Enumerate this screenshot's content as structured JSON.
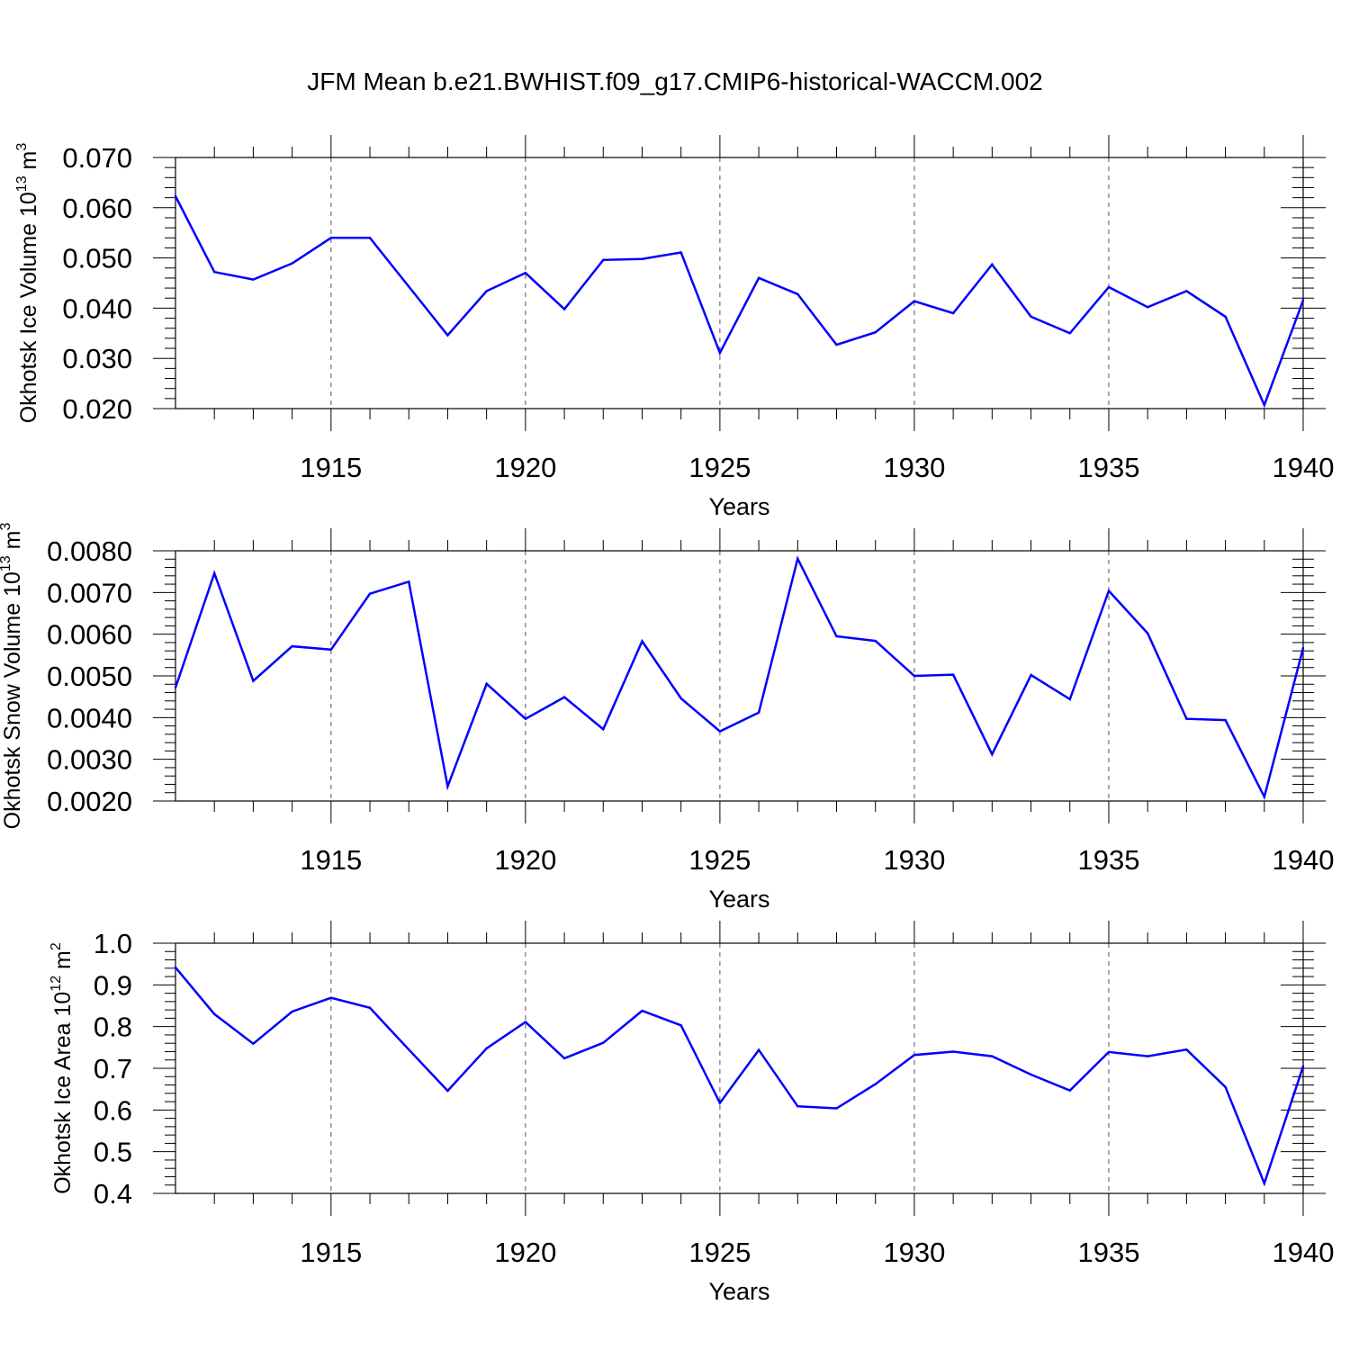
{
  "figure_title": "JFM Mean b.e21.BWHIST.f09_g17.CMIP6-historical-WACCM.002",
  "line_color": "#0000ff",
  "chart_data": [
    {
      "type": "line",
      "title": "",
      "xlabel": "Years",
      "ylabel": "Okhotsk Ice Volume",
      "ylabel_prefix": "Okhotsk Ice Volume 10",
      "ylabel_exp": "13",
      "ylabel_unit": " m",
      "ylabel_unit_exp": "3",
      "xlim": [
        1911,
        1940
      ],
      "ylim": [
        0.02,
        0.07
      ],
      "yticks": [
        "0.020",
        "0.030",
        "0.040",
        "0.050",
        "0.060",
        "0.070"
      ],
      "yticks_values": [
        0.02,
        0.03,
        0.04,
        0.05,
        0.06,
        0.07
      ],
      "xticks": [
        "1915",
        "1920",
        "1925",
        "1930",
        "1935",
        "1940"
      ],
      "xticks_values": [
        1915,
        1920,
        1925,
        1930,
        1935,
        1940
      ],
      "grid": "vertical-dashed",
      "x": [
        1911,
        1912,
        1913,
        1914,
        1915,
        1916,
        1917,
        1918,
        1919,
        1920,
        1921,
        1922,
        1923,
        1924,
        1925,
        1926,
        1927,
        1928,
        1929,
        1930,
        1931,
        1932,
        1933,
        1934,
        1935,
        1936,
        1937,
        1938,
        1939,
        1940
      ],
      "values": [
        0.0623,
        0.0472,
        0.0457,
        0.0489,
        0.054,
        0.054,
        0.0443,
        0.0346,
        0.0434,
        0.047,
        0.0398,
        0.0496,
        0.0498,
        0.0511,
        0.0311,
        0.046,
        0.0428,
        0.0327,
        0.0352,
        0.0414,
        0.039,
        0.0487,
        0.0383,
        0.035,
        0.0442,
        0.0402,
        0.0434,
        0.0383,
        0.0207,
        0.0416
      ]
    },
    {
      "type": "line",
      "title": "",
      "xlabel": "Years",
      "ylabel": "Okhotsk Snow Volume",
      "ylabel_prefix": "Okhotsk Snow Volume 10",
      "ylabel_exp": "13",
      "ylabel_unit": " m",
      "ylabel_unit_exp": "3",
      "xlim": [
        1911,
        1940
      ],
      "ylim": [
        0.002,
        0.008
      ],
      "yticks": [
        "0.0020",
        "0.0030",
        "0.0040",
        "0.0050",
        "0.0060",
        "0.0070",
        "0.0080"
      ],
      "yticks_values": [
        0.002,
        0.003,
        0.004,
        0.005,
        0.006,
        0.007,
        0.008
      ],
      "xticks": [
        "1915",
        "1920",
        "1925",
        "1930",
        "1935",
        "1940"
      ],
      "xticks_values": [
        1915,
        1920,
        1925,
        1930,
        1935,
        1940
      ],
      "grid": "vertical-dashed",
      "x": [
        1911,
        1912,
        1913,
        1914,
        1915,
        1916,
        1917,
        1918,
        1919,
        1920,
        1921,
        1922,
        1923,
        1924,
        1925,
        1926,
        1927,
        1928,
        1929,
        1930,
        1931,
        1932,
        1933,
        1934,
        1935,
        1936,
        1937,
        1938,
        1939,
        1940
      ],
      "values": [
        0.00472,
        0.00746,
        0.00488,
        0.00571,
        0.00563,
        0.00697,
        0.00726,
        0.00235,
        0.00481,
        0.00397,
        0.00449,
        0.00372,
        0.00583,
        0.00446,
        0.00367,
        0.00412,
        0.00781,
        0.00595,
        0.00584,
        0.005,
        0.00503,
        0.00312,
        0.00502,
        0.00444,
        0.00704,
        0.00602,
        0.00397,
        0.00394,
        0.0021,
        0.00567
      ]
    },
    {
      "type": "line",
      "title": "",
      "xlabel": "Years",
      "ylabel": "Okhotsk Ice Area",
      "ylabel_prefix": "Okhotsk Ice Area 10",
      "ylabel_exp": "12",
      "ylabel_unit": " m",
      "ylabel_unit_exp": "2",
      "xlim": [
        1911,
        1940
      ],
      "ylim": [
        0.4,
        1.0
      ],
      "yticks": [
        "0.4",
        "0.5",
        "0.6",
        "0.7",
        "0.8",
        "0.9",
        "1.0"
      ],
      "yticks_values": [
        0.4,
        0.5,
        0.6,
        0.7,
        0.8,
        0.9,
        1.0
      ],
      "xticks": [
        "1915",
        "1920",
        "1925",
        "1930",
        "1935",
        "1940"
      ],
      "xticks_values": [
        1915,
        1920,
        1925,
        1930,
        1935,
        1940
      ],
      "grid": "vertical-dashed",
      "x": [
        1911,
        1912,
        1913,
        1914,
        1915,
        1916,
        1917,
        1918,
        1919,
        1920,
        1921,
        1922,
        1923,
        1924,
        1925,
        1926,
        1927,
        1928,
        1929,
        1930,
        1931,
        1932,
        1933,
        1934,
        1935,
        1936,
        1937,
        1938,
        1939,
        1940
      ],
      "values": [
        0.942,
        0.83,
        0.759,
        0.836,
        0.869,
        0.845,
        0.745,
        0.646,
        0.748,
        0.811,
        0.724,
        0.761,
        0.838,
        0.803,
        0.617,
        0.744,
        0.609,
        0.604,
        0.662,
        0.732,
        0.74,
        0.729,
        0.685,
        0.647,
        0.739,
        0.729,
        0.745,
        0.655,
        0.424,
        0.705
      ]
    }
  ]
}
